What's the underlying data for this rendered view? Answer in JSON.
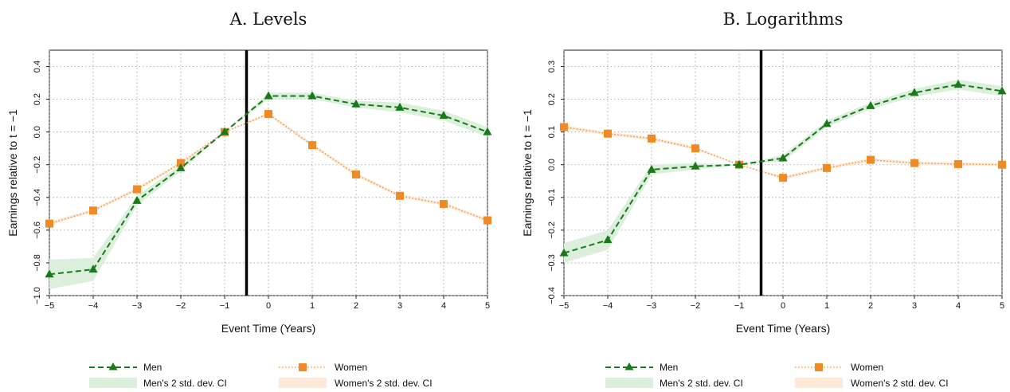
{
  "colors": {
    "men": "#1a7a1a",
    "women": "#f08a24",
    "men_ci": "#dcefdc",
    "women_ci": "#fde9d8",
    "event_line": "#000000"
  },
  "legend": {
    "men": "Men",
    "women": "Women",
    "men_ci": "Men's 2 std. dev. CI",
    "women_ci": "Women's 2 std. dev. CI"
  },
  "chart_data": [
    {
      "type": "line",
      "title": "A. Levels",
      "xlabel": "Event Time (Years)",
      "ylabel": "Earnings relative to t = −1",
      "xlim": [
        -5,
        5
      ],
      "ylim": [
        -1.0,
        0.5
      ],
      "xticks": [
        -5,
        -4,
        -3,
        -2,
        -1,
        0,
        1,
        2,
        3,
        4,
        5
      ],
      "xtick_labels": [
        "−5",
        "−4",
        "−3",
        "−2",
        "−1",
        "0",
        "1",
        "2",
        "3",
        "4",
        "5"
      ],
      "yticks": [
        -1.0,
        -0.8,
        -0.6,
        -0.4,
        -0.2,
        0.0,
        0.2,
        0.4
      ],
      "ytick_labels": [
        "−1.0",
        "−0.8",
        "−0.6",
        "−0.4",
        "−0.2",
        "0.0",
        "0.2",
        "0.4"
      ],
      "event_line_x": -0.5,
      "grid": true,
      "x": [
        -5,
        -4,
        -3,
        -2,
        -1,
        0,
        1,
        2,
        3,
        4,
        5
      ],
      "series": [
        {
          "name": "Men",
          "marker": "triangle",
          "style": "dashed",
          "values": [
            -0.87,
            -0.84,
            -0.42,
            -0.22,
            0.0,
            0.22,
            0.22,
            0.17,
            0.15,
            0.1,
            0.0
          ],
          "ci_halfwidth": [
            0.09,
            0.07,
            0.03,
            0.02,
            0.0,
            0.02,
            0.02,
            0.02,
            0.03,
            0.03,
            0.03
          ]
        },
        {
          "name": "Women",
          "marker": "square",
          "style": "dotted",
          "values": [
            -0.56,
            -0.48,
            -0.35,
            -0.19,
            0.0,
            0.11,
            -0.08,
            -0.26,
            -0.39,
            -0.44,
            -0.54
          ],
          "ci_halfwidth": [
            0.01,
            0.01,
            0.01,
            0.01,
            0.0,
            0.01,
            0.01,
            0.01,
            0.01,
            0.01,
            0.01
          ]
        }
      ]
    },
    {
      "type": "line",
      "title": "B. Logarithms",
      "xlabel": "Event Time (Years)",
      "ylabel": "Earnings relative to t = −1",
      "xlim": [
        -5,
        5
      ],
      "ylim": [
        -0.4,
        0.35
      ],
      "xticks": [
        -5,
        -4,
        -3,
        -2,
        -1,
        0,
        1,
        2,
        3,
        4,
        5
      ],
      "xtick_labels": [
        "−5",
        "−4",
        "−3",
        "−2",
        "−1",
        "0",
        "1",
        "2",
        "3",
        "4",
        "5"
      ],
      "yticks": [
        -0.4,
        -0.3,
        -0.2,
        -0.1,
        0.0,
        0.1,
        0.2,
        0.3
      ],
      "ytick_labels": [
        "−0.4",
        "−0.3",
        "−0.2",
        "−0.1",
        "0.0",
        "0.1",
        "0.2",
        "0.3"
      ],
      "event_line_x": -0.5,
      "grid": true,
      "x": [
        -5,
        -4,
        -3,
        -2,
        -1,
        0,
        1,
        2,
        3,
        4,
        5
      ],
      "series": [
        {
          "name": "Men",
          "marker": "triangle",
          "style": "dashed",
          "values": [
            -0.27,
            -0.23,
            -0.015,
            -0.005,
            0.0,
            0.02,
            0.125,
            0.18,
            0.22,
            0.245,
            0.225
          ],
          "ci_halfwidth": [
            0.03,
            0.03,
            0.015,
            0.01,
            0.0,
            0.01,
            0.01,
            0.01,
            0.012,
            0.015,
            0.015
          ]
        },
        {
          "name": "Women",
          "marker": "square",
          "style": "dotted",
          "values": [
            0.115,
            0.095,
            0.08,
            0.05,
            0.0,
            -0.04,
            -0.01,
            0.015,
            0.005,
            0.002,
            0.0
          ],
          "ci_halfwidth": [
            0.005,
            0.005,
            0.005,
            0.005,
            0.0,
            0.005,
            0.005,
            0.005,
            0.005,
            0.005,
            0.005
          ]
        }
      ]
    }
  ]
}
